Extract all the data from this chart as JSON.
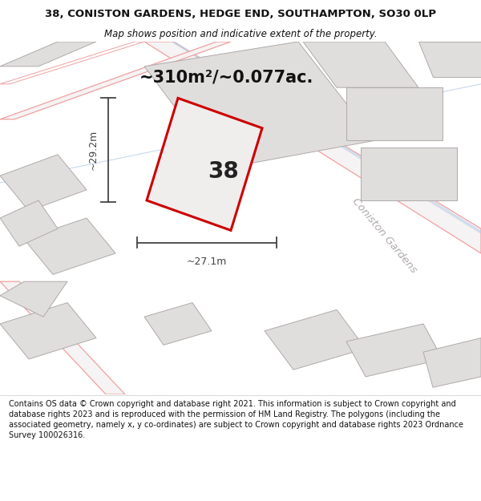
{
  "title_line1": "38, CONISTON GARDENS, HEDGE END, SOUTHAMPTON, SO30 0LP",
  "title_line2": "Map shows position and indicative extent of the property.",
  "area_text": "~310m²/~0.077ac.",
  "property_number": "38",
  "width_label": "~27.1m",
  "height_label": "~29.2m",
  "road_label": "Coniston Gardens",
  "footer_text": "Contains OS data © Crown copyright and database right 2021. This information is subject to Crown copyright and database rights 2023 and is reproduced with the permission of HM Land Registry. The polygons (including the associated geometry, namely x, y co-ordinates) are subject to Crown copyright and database rights 2023 Ordnance Survey 100026316.",
  "bg_color": "#ffffff",
  "map_bg_color": "#f5f3f3",
  "building_fill": "#e0dddd",
  "building_edge": "#b0aaaa",
  "property_outline_color": "#cc0000",
  "property_fill_color": "#f0eded",
  "dim_line_color": "#444444",
  "road_line_color": "#f0a0a0",
  "road_inner_color": "#e8c0c0",
  "blue_line_color": "#b0c8e8",
  "title_color": "#111111",
  "footer_color": "#111111",
  "area_color": "#111111",
  "road_label_color": "#b0aaaa",
  "title_fontsize": 9.5,
  "subtitle_fontsize": 8.5,
  "area_fontsize": 15,
  "dim_fontsize": 9,
  "number_fontsize": 20,
  "road_label_fontsize": 9.5,
  "footer_fontsize": 7.0
}
